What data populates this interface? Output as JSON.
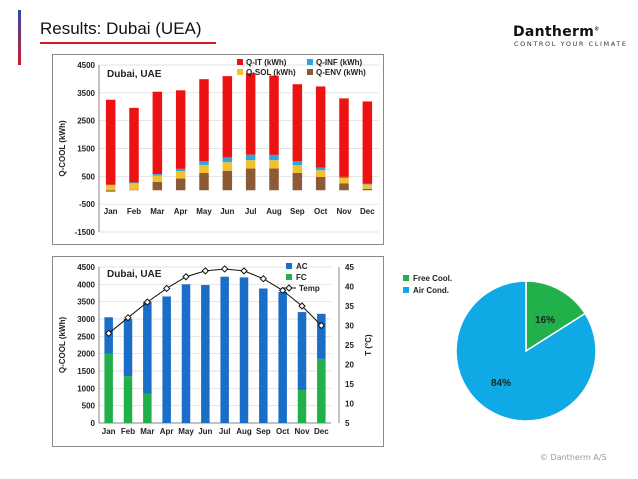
{
  "slide": {
    "title": "Results: Dubai (UEA)",
    "footer": "© Dantherm A/S"
  },
  "brand": {
    "name": "Dantherm",
    "mark": "®",
    "tagline": "CONTROL YOUR CLIMATE"
  },
  "colors": {
    "q_it": "#ee1111",
    "q_inf": "#2ea6dd",
    "q_sol": "#f2c12e",
    "q_env": "#8c5a36",
    "ac": "#1a6ec8",
    "fc": "#22b04a",
    "air_cond": "#0fa9e6",
    "free_cool": "#22b04a",
    "accent": "#d11a2a"
  },
  "chart_data": [
    {
      "type": "bar",
      "stacked": true,
      "title": "Dubai, UAE",
      "xlabel": "",
      "ylabel": "Q-COOL (kWh)",
      "ylim": [
        -1500,
        4500
      ],
      "yticks": [
        -1500,
        -500,
        500,
        1500,
        2500,
        3500,
        4500
      ],
      "legend_position": "top-right",
      "categories": [
        "Jan",
        "Feb",
        "Mar",
        "Apr",
        "May",
        "Jun",
        "Jul",
        "Aug",
        "Sep",
        "Oct",
        "Nov",
        "Dec"
      ],
      "series": [
        {
          "name": "Q-ENV (kWh)",
          "color_key": "q_env",
          "values": [
            -50,
            20,
            300,
            420,
            620,
            700,
            780,
            780,
            620,
            480,
            250,
            50
          ]
        },
        {
          "name": "Q-SOL (kWh)",
          "color_key": "q_sol",
          "values": [
            180,
            230,
            230,
            270,
            290,
            310,
            300,
            300,
            280,
            240,
            190,
            160
          ]
        },
        {
          "name": "Q-INF (kWh)",
          "color_key": "q_inf",
          "values": [
            20,
            30,
            50,
            80,
            130,
            170,
            200,
            190,
            150,
            90,
            40,
            20
          ]
        },
        {
          "name": "Q-IT (kWh)",
          "color_key": "q_it",
          "values": [
            3050,
            2680,
            2960,
            2820,
            2950,
            2920,
            2920,
            2850,
            2760,
            2920,
            2820,
            2960
          ]
        }
      ]
    },
    {
      "type": "bar",
      "stacked": true,
      "title": "Dubai, UAE",
      "xlabel": "",
      "ylabel": "Q-COOL (kWh)",
      "y2label": "T (°C)",
      "ylim": [
        0,
        4500
      ],
      "yticks": [
        0,
        500,
        1000,
        1500,
        2000,
        2500,
        3000,
        3500,
        4000,
        4500
      ],
      "y2lim": [
        5,
        45
      ],
      "y2ticks": [
        5,
        10,
        15,
        20,
        25,
        30,
        35,
        40,
        45
      ],
      "legend_position": "top-right",
      "categories": [
        "Jan",
        "Feb",
        "Mar",
        "Apr",
        "May",
        "Jun",
        "Jul",
        "Aug",
        "Sep",
        "Oct",
        "Nov",
        "Dec"
      ],
      "series": [
        {
          "name": "FC",
          "color_key": "fc",
          "values": [
            2000,
            1350,
            850,
            0,
            0,
            0,
            0,
            0,
            0,
            0,
            950,
            1850
          ]
        },
        {
          "name": "AC",
          "color_key": "ac",
          "values": [
            1050,
            1650,
            2650,
            3650,
            4000,
            3980,
            4220,
            4200,
            3880,
            3780,
            2250,
            1300
          ]
        }
      ],
      "line": {
        "name": "Temp",
        "axis": "y2",
        "values": [
          28,
          32,
          36,
          39.5,
          42.5,
          44,
          44.5,
          44,
          42,
          39,
          35,
          30
        ]
      }
    },
    {
      "type": "pie",
      "title": "",
      "legend_position": "top-left",
      "labels": [
        "Free Cool.",
        "Air Cond."
      ],
      "values": [
        16,
        84
      ],
      "value_labels": [
        "16%",
        "84%"
      ],
      "color_keys": [
        "free_cool",
        "air_cond"
      ]
    }
  ]
}
